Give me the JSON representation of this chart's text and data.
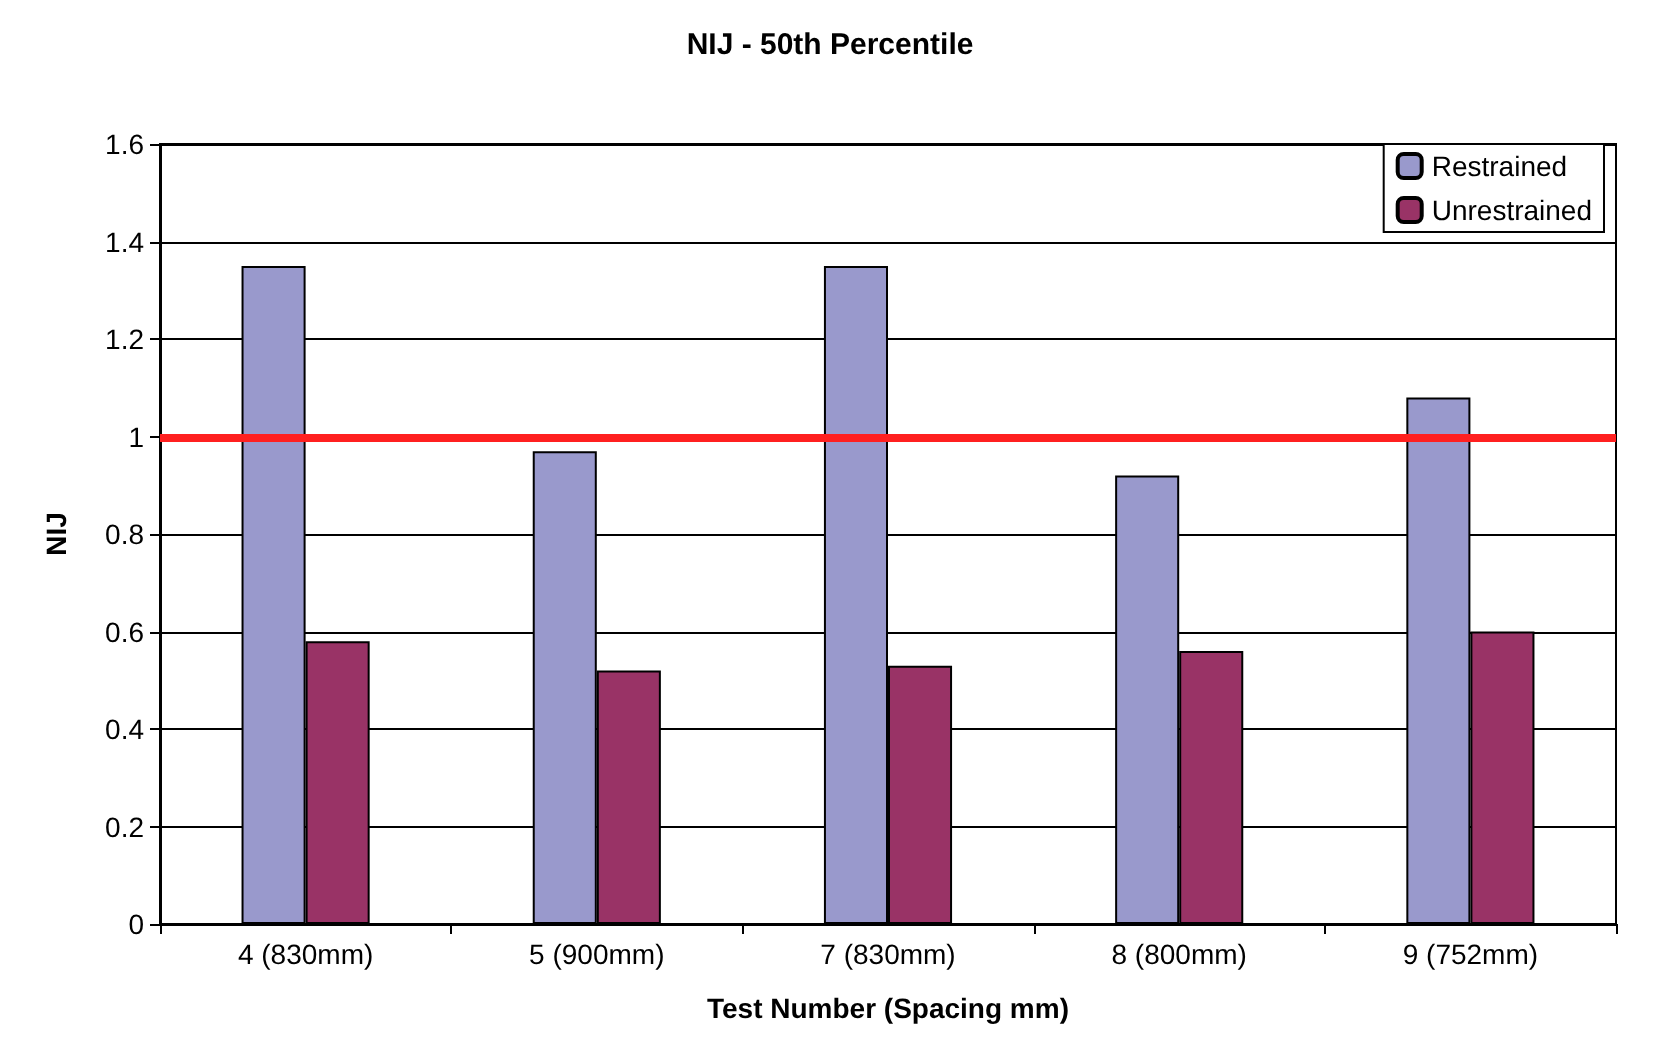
{
  "chart_data": {
    "type": "bar",
    "title": "NIJ - 50th Percentile",
    "xlabel": "Test Number (Spacing mm)",
    "ylabel": "NIJ",
    "categories": [
      "4 (830mm)",
      "5 (900mm)",
      "7 (830mm)",
      "8 (800mm)",
      "9 (752mm)"
    ],
    "series": [
      {
        "name": "Restrained",
        "color": "#9999cc",
        "values": [
          1.35,
          0.97,
          1.35,
          0.92,
          1.08
        ]
      },
      {
        "name": "Unrestrained",
        "color": "#993366",
        "values": [
          0.58,
          0.52,
          0.53,
          0.56,
          0.6
        ]
      }
    ],
    "ylim": [
      0,
      1.6
    ],
    "yticks": [
      0,
      0.2,
      0.4,
      0.6,
      0.8,
      1,
      1.2,
      1.4,
      1.6
    ],
    "grid": "y",
    "legend": "top right",
    "ref_lines": [
      {
        "axis": "y",
        "value": 1,
        "color": "#ff2020"
      }
    ]
  }
}
